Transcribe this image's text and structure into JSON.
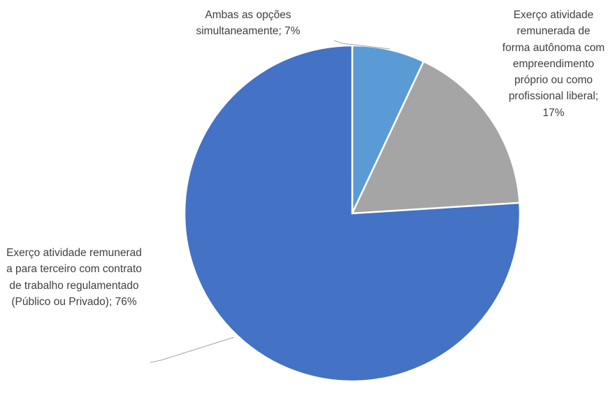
{
  "chart_data": {
    "type": "pie",
    "categories": [
      "Ambas as opções simultaneamente;",
      "Exerço atividade remunerada de forma autônoma com empreendimento próprio ou como profissional liberal;",
      "Exerço atividade remunerada para terceiro com contrato de trabalho regulamentado(Público ou Privado);"
    ],
    "values": [
      7,
      17,
      76
    ],
    "value_labels": [
      "7%",
      "17%",
      "76%"
    ],
    "colors": [
      "#5b9bd5",
      "#a5a5a5",
      "#4472c4"
    ]
  }
}
